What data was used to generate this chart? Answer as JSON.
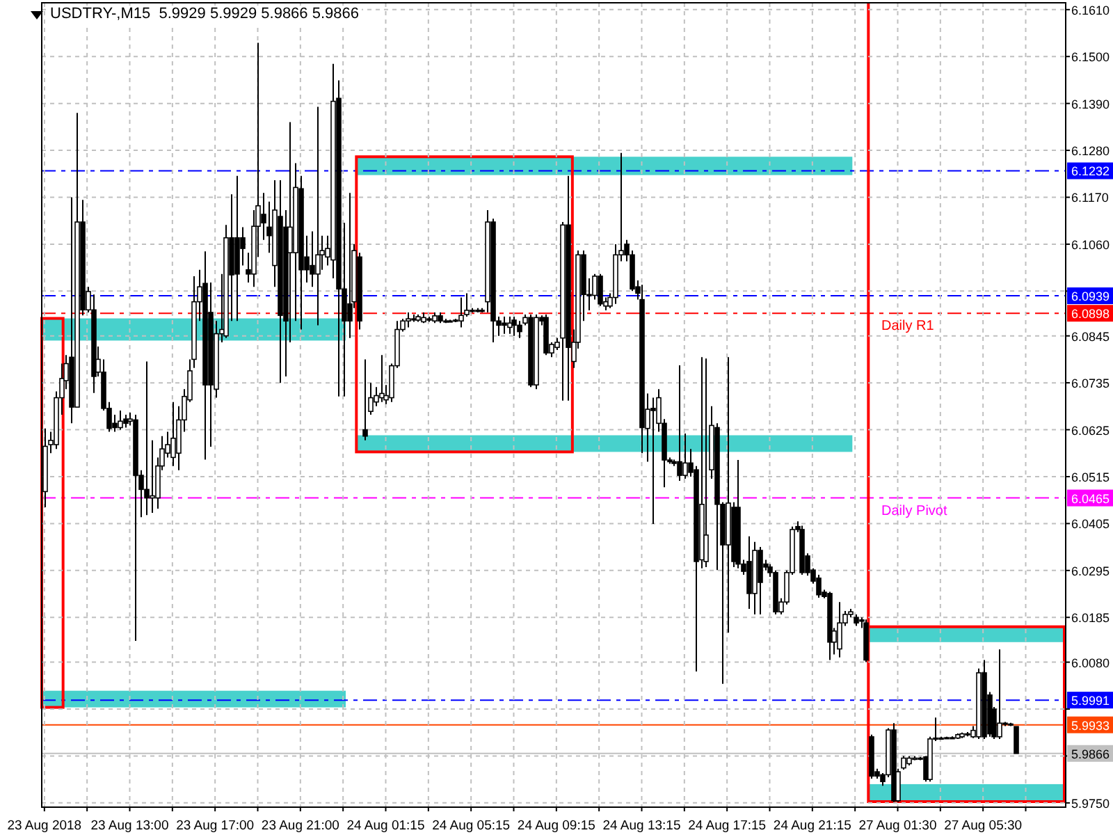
{
  "chart_data": {
    "type": "candlestick",
    "title": "USDTRY-,M15  5.9929 5.9929 5.9866 5.9866",
    "categories": [
      "23 Aug 2018",
      null,
      null,
      null,
      null,
      null,
      null,
      null,
      null,
      null,
      null,
      null,
      null,
      null,
      null,
      null,
      "23 Aug 13:00",
      null,
      null,
      null,
      null,
      null,
      null,
      null,
      null,
      null,
      null,
      null,
      null,
      null,
      null,
      null,
      "23 Aug 17:00",
      null,
      null,
      null,
      null,
      null,
      null,
      null,
      null,
      null,
      null,
      null,
      null,
      null,
      null,
      null,
      "23 Aug 21:00",
      null,
      null,
      null,
      null,
      null,
      null,
      null,
      null,
      null,
      null,
      null,
      null,
      null,
      null,
      null,
      "24 Aug 01:15",
      null,
      null,
      null,
      null,
      null,
      null,
      null,
      null,
      null,
      null,
      null,
      null,
      null,
      null,
      null,
      "24 Aug 05:15",
      null,
      null,
      null,
      null,
      null,
      null,
      null,
      null,
      null,
      null,
      null,
      null,
      null,
      null,
      null,
      "24 Aug 09:15",
      null,
      null,
      null,
      null,
      null,
      null,
      null,
      null,
      null,
      null,
      null,
      null,
      null,
      null,
      null,
      "24 Aug 13:15",
      null,
      null,
      null,
      null,
      null,
      null,
      null,
      null,
      null,
      null,
      null,
      null,
      null,
      null,
      null,
      "24 Aug 17:15",
      null,
      null,
      null,
      null,
      null,
      null,
      null,
      null,
      null,
      null,
      null,
      null,
      null,
      null,
      null,
      "24 Aug 21:15",
      null,
      null,
      null,
      null,
      null,
      null,
      null,
      null,
      null,
      null,
      null,
      null,
      null,
      null,
      null,
      "27 Aug 01:30",
      null,
      null,
      null,
      null,
      null,
      null,
      null,
      null,
      null,
      null,
      null,
      null,
      null,
      null,
      null,
      "27 Aug 05:30",
      null,
      null,
      null,
      null,
      null,
      null,
      null,
      null,
      null,
      null,
      null,
      null,
      null,
      null,
      null
    ],
    "ohlc": [
      [
        6.048,
        6.0628,
        6.0443,
        6.0586
      ],
      [
        6.059,
        6.062,
        6.057,
        6.06
      ],
      [
        6.059,
        6.0715,
        6.058,
        6.07
      ],
      [
        6.07,
        6.078,
        6.066,
        6.0745
      ],
      [
        6.074,
        6.08,
        6.072,
        6.078
      ],
      [
        6.0795,
        6.117,
        6.064,
        6.0678
      ],
      [
        6.0678,
        6.1368,
        6.0678,
        6.1112
      ],
      [
        6.1112,
        6.1164,
        6.0893,
        6.0906
      ],
      [
        6.0906,
        6.096,
        6.09,
        6.0949
      ],
      [
        6.0906,
        6.0942,
        6.0711,
        6.075
      ],
      [
        6.076,
        6.082,
        6.075,
        6.079
      ],
      [
        6.076,
        6.079,
        6.067,
        6.0675
      ],
      [
        6.0675,
        6.069,
        6.062,
        6.0628
      ],
      [
        6.064,
        6.066,
        6.062,
        6.063
      ],
      [
        6.063,
        6.067,
        6.0625,
        6.0645
      ],
      [
        6.065,
        6.066,
        6.063,
        6.064
      ],
      [
        6.0645,
        6.0665,
        6.0635,
        6.065
      ],
      [
        6.0648,
        6.066,
        6.013,
        6.0518
      ],
      [
        6.0518,
        6.053,
        6.042,
        6.0485
      ],
      [
        6.0485,
        6.0785,
        6.0425,
        6.0465
      ],
      [
        6.0465,
        6.06,
        6.043,
        6.047
      ],
      [
        6.0465,
        6.056,
        6.044,
        6.054
      ],
      [
        6.054,
        6.061,
        6.053,
        6.058
      ],
      [
        6.057,
        6.062,
        6.056,
        6.059
      ],
      [
        6.056,
        6.069,
        6.054,
        6.0605
      ],
      [
        6.057,
        6.068,
        6.053,
        6.0648
      ],
      [
        6.0648,
        6.072,
        6.062,
        6.0703
      ],
      [
        6.0695,
        6.079,
        6.069,
        6.0763
      ],
      [
        6.079,
        6.0985,
        6.077,
        6.0925
      ],
      [
        6.0925,
        6.1,
        6.088,
        6.096
      ],
      [
        6.0968,
        6.1043,
        6.0555,
        6.073
      ],
      [
        6.09,
        6.097,
        6.0585,
        6.073
      ],
      [
        6.072,
        6.088,
        6.07,
        6.085
      ],
      [
        6.085,
        6.099,
        6.083,
        6.086
      ],
      [
        6.0845,
        6.1105,
        6.084,
        6.1075
      ],
      [
        6.1075,
        6.1177,
        6.088,
        6.0988
      ],
      [
        6.1075,
        6.122,
        6.088,
        6.099
      ],
      [
        6.1075,
        6.11,
        6.101,
        6.105
      ],
      [
        6.1,
        6.104,
        6.097,
        6.099
      ],
      [
        6.099,
        6.114,
        6.096,
        6.1102
      ],
      [
        6.1102,
        6.1532,
        6.103,
        6.115
      ],
      [
        6.113,
        6.118,
        6.107,
        6.111
      ],
      [
        6.11,
        6.116,
        6.104,
        6.108
      ],
      [
        6.101,
        6.121,
        6.096,
        6.114
      ],
      [
        6.1125,
        6.121,
        6.0735,
        6.0893
      ],
      [
        6.11,
        6.114,
        6.075,
        6.088
      ],
      [
        6.104,
        6.1346,
        6.083,
        6.11
      ],
      [
        6.104,
        6.125,
        6.088,
        6.1193
      ],
      [
        6.119,
        6.122,
        6.086,
        6.1
      ],
      [
        6.103,
        6.108,
        6.097,
        6.1
      ],
      [
        6.101,
        6.109,
        6.096,
        6.099
      ],
      [
        6.099,
        6.1382,
        6.087,
        6.1035
      ],
      [
        6.1035,
        6.108,
        6.1,
        6.1045
      ],
      [
        6.103,
        6.108,
        6.101,
        6.105
      ],
      [
        6.1023,
        6.1483,
        6.098,
        6.1395
      ],
      [
        6.1402,
        6.1444,
        6.0703,
        6.0955
      ],
      [
        6.0955,
        6.111,
        6.0703,
        6.088
      ],
      [
        6.092,
        6.118,
        6.084,
        6.088
      ],
      [
        6.0925,
        6.106,
        6.091,
        6.1045
      ],
      [
        6.103,
        6.104,
        6.086,
        6.088
      ],
      [
        6.0625,
        6.079,
        6.06,
        6.061
      ],
      [
        6.0668,
        6.0735,
        6.066,
        6.07
      ],
      [
        6.069,
        6.0725,
        6.068,
        6.0705
      ],
      [
        6.07,
        6.08,
        6.069,
        6.071
      ],
      [
        6.0695,
        6.073,
        6.0685,
        6.0705
      ],
      [
        6.07,
        6.078,
        6.069,
        6.0775
      ],
      [
        6.0775,
        6.088,
        6.077,
        6.086
      ],
      [
        6.086,
        6.0885,
        6.0855,
        6.088
      ],
      [
        6.088,
        6.09,
        6.0865,
        6.0885
      ],
      [
        6.0885,
        6.0895,
        6.0878,
        6.0885
      ],
      [
        6.0882,
        6.0895,
        6.0878,
        6.089
      ],
      [
        6.0878,
        6.09,
        6.0875,
        6.0888
      ],
      [
        6.0885,
        6.089,
        6.0878,
        6.0882
      ],
      [
        6.088,
        6.09,
        6.0875,
        6.0892
      ],
      [
        6.0892,
        6.09,
        6.0875,
        6.088
      ],
      [
        6.088,
        6.0885,
        6.0875,
        6.088
      ],
      [
        6.088,
        6.0883,
        6.0877,
        6.088
      ],
      [
        6.088,
        6.0885,
        6.0877,
        6.0882
      ],
      [
        6.088,
        6.0935,
        6.0865,
        6.0893
      ],
      [
        6.0895,
        6.0945,
        6.089,
        6.0905
      ],
      [
        6.0905,
        6.091,
        6.09,
        6.0905
      ],
      [
        6.0905,
        6.091,
        6.09,
        6.0905
      ],
      [
        6.0905,
        6.091,
        6.09,
        6.0905
      ],
      [
        6.0925,
        6.114,
        6.09,
        6.1112
      ],
      [
        6.1112,
        6.112,
        6.083,
        6.088
      ],
      [
        6.088,
        6.089,
        6.0845,
        6.087
      ],
      [
        6.0875,
        6.089,
        6.085,
        6.087
      ],
      [
        6.0865,
        6.089,
        6.085,
        6.0875
      ],
      [
        6.0882,
        6.089,
        6.0845,
        6.087
      ],
      [
        6.087,
        6.088,
        6.084,
        6.0855
      ],
      [
        6.0875,
        6.0895,
        6.087,
        6.0888
      ],
      [
        6.0888,
        6.0895,
        6.0725,
        6.073
      ],
      [
        6.073,
        6.0895,
        6.072,
        6.0888
      ],
      [
        6.0888,
        6.0893,
        6.087,
        6.088
      ],
      [
        6.0888,
        6.0895,
        6.08,
        6.0805
      ],
      [
        6.0805,
        6.083,
        6.0795,
        6.0825
      ],
      [
        6.0818,
        6.084,
        6.0812,
        6.083
      ],
      [
        6.084,
        6.1112,
        6.0693,
        6.1105
      ],
      [
        6.1105,
        6.122,
        6.0693,
        6.0818
      ],
      [
        6.0785,
        6.086,
        6.077,
        6.083
      ],
      [
        6.083,
        6.1045,
        6.0815,
        6.1035
      ],
      [
        6.1035,
        6.1045,
        6.088,
        6.0942
      ],
      [
        6.0942,
        6.098,
        6.0905,
        6.094
      ],
      [
        6.094,
        6.099,
        6.093,
        6.0985
      ],
      [
        6.0985,
        6.099,
        6.0915,
        6.092
      ],
      [
        6.0915,
        6.0935,
        6.0905,
        6.0925
      ],
      [
        6.0915,
        6.0945,
        6.091,
        6.0935
      ],
      [
        6.0935,
        6.106,
        6.092,
        6.1035
      ],
      [
        6.1035,
        6.1274,
        6.102,
        6.1045
      ],
      [
        6.106,
        6.107,
        6.102,
        6.1035
      ],
      [
        6.1035,
        6.1045,
        6.095,
        6.0955
      ],
      [
        6.096,
        6.0975,
        6.093,
        6.0945
      ],
      [
        6.093,
        6.0965,
        6.057,
        6.063
      ],
      [
        6.0628,
        6.071,
        6.055,
        6.0673
      ],
      [
        6.0675,
        6.07,
        6.0404,
        6.067
      ],
      [
        6.064,
        6.072,
        6.062,
        6.07
      ],
      [
        6.064,
        6.065,
        6.049,
        6.0554
      ],
      [
        6.0554,
        6.056,
        6.0545,
        6.055
      ],
      [
        6.055,
        6.0555,
        6.054,
        6.0546
      ],
      [
        6.055,
        6.0776,
        6.0505,
        6.0518
      ],
      [
        6.0518,
        6.0616,
        6.051,
        6.0547
      ],
      [
        6.0547,
        6.058,
        6.0515,
        6.0525
      ],
      [
        6.0531,
        6.054,
        6.0058,
        6.0316
      ],
      [
        6.032,
        6.0795,
        6.03,
        6.045
      ],
      [
        6.0316,
        6.0792,
        6.0303,
        6.0378
      ],
      [
        6.0531,
        6.068,
        6.051,
        6.0635
      ],
      [
        6.063,
        6.064,
        6.0296,
        6.045
      ],
      [
        6.045,
        6.0455,
        6.0029,
        6.0355
      ],
      [
        6.0355,
        6.0795,
        6.0149,
        6.0453
      ],
      [
        6.0443,
        6.0455,
        6.0303,
        6.0316
      ],
      [
        6.0443,
        6.0554,
        6.03,
        6.031
      ],
      [
        6.031,
        6.032,
        6.0285,
        6.0293
      ],
      [
        6.0316,
        6.0375,
        6.0205,
        6.0241
      ],
      [
        6.0241,
        6.0362,
        6.0192,
        6.0342
      ],
      [
        6.0342,
        6.035,
        6.0192,
        6.0267
      ],
      [
        6.031,
        6.032,
        6.0295,
        6.0303
      ],
      [
        6.0303,
        6.031,
        6.028,
        6.029
      ],
      [
        6.029,
        6.0295,
        6.0192,
        6.0198
      ],
      [
        6.0198,
        6.023,
        6.0192,
        6.0221
      ],
      [
        6.0221,
        6.0295,
        6.0215,
        6.029
      ],
      [
        6.029,
        6.0398,
        6.0285,
        6.0391
      ],
      [
        6.0398,
        6.041,
        6.0385,
        6.0391
      ],
      [
        6.0391,
        6.04,
        6.0285,
        6.029
      ],
      [
        6.0329,
        6.0335,
        6.0283,
        6.029
      ],
      [
        6.0296,
        6.03,
        6.0264,
        6.027
      ],
      [
        6.0277,
        6.0285,
        6.0231,
        6.0238
      ],
      [
        6.0244,
        6.025,
        6.023,
        6.0234
      ],
      [
        6.0241,
        6.0245,
        6.0085,
        6.0127
      ],
      [
        6.0127,
        6.016,
        6.0098,
        6.0153
      ],
      [
        6.0111,
        6.0221,
        6.0091,
        6.0172
      ],
      [
        6.0172,
        6.02,
        6.0165,
        6.0192
      ],
      [
        6.0192,
        6.0205,
        6.0185,
        6.0198
      ],
      [
        6.0185,
        6.0192,
        6.0165,
        6.0172
      ],
      [
        6.0179,
        6.0185,
        6.016,
        6.0176
      ],
      [
        6.0172,
        6.018,
        6.008,
        6.0085
      ],
      [
        5.9905,
        5.991,
        5.9807,
        5.9813
      ],
      [
        5.9823,
        5.983,
        5.9807,
        5.9813
      ],
      [
        5.9816,
        5.982,
        5.979,
        5.98
      ],
      [
        5.9816,
        5.9925,
        5.981,
        5.9921
      ],
      [
        5.9921,
        5.9937,
        5.9752,
        5.9755
      ],
      [
        5.9755,
        5.983,
        5.9752,
        5.9823
      ],
      [
        5.9832,
        5.986,
        5.9828,
        5.9855
      ],
      [
        5.9842,
        5.986,
        5.9838,
        5.9855
      ],
      [
        5.9852,
        5.986,
        5.985,
        5.9855
      ],
      [
        5.9855,
        5.9858,
        5.985,
        5.9855
      ],
      [
        5.9858,
        5.986,
        5.98,
        5.9805
      ],
      [
        5.9805,
        5.9905,
        5.98,
        5.99
      ],
      [
        5.99,
        5.995,
        5.9895,
        5.9902
      ],
      [
        5.9902,
        5.9905,
        5.99,
        5.9902
      ],
      [
        5.9902,
        5.9905,
        5.99,
        5.9903
      ],
      [
        5.9903,
        5.9906,
        5.99,
        5.9903
      ],
      [
        5.9902,
        5.9913,
        5.99,
        5.991
      ],
      [
        5.9905,
        5.9915,
        5.9902,
        5.9912
      ],
      [
        5.991,
        5.9916,
        5.9906,
        5.9912
      ],
      [
        5.9905,
        5.993,
        5.9902,
        5.992
      ],
      [
        5.9905,
        6.0065,
        5.99,
        6.0055
      ],
      [
        6.0055,
        6.0085,
        5.99,
        5.9905
      ],
      [
        6.0003,
        6.001,
        5.9905,
        5.9912
      ],
      [
        5.997,
        5.9975,
        5.99,
        5.9905
      ],
      [
        5.9905,
        6.011,
        5.99,
        5.9937
      ],
      [
        5.9937,
        5.994,
        5.993,
        5.9935
      ],
      [
        5.9935,
        5.9938,
        5.993,
        5.9933
      ],
      [
        5.9929,
        5.9929,
        5.9866,
        5.9866
      ],
      null,
      null,
      null,
      null,
      null,
      null,
      null,
      null,
      null
    ],
    "color": "#000000",
    "ylim": [
      5.974,
      6.1626
    ],
    "yticks": [
      {
        "value": 6.161,
        "label": "6.1610"
      },
      {
        "value": 6.15,
        "label": "6.1500"
      },
      {
        "value": 6.139,
        "label": "6.1390"
      },
      {
        "value": 6.128,
        "label": "6.1280"
      },
      {
        "value": 6.117,
        "label": "6.1170"
      },
      {
        "value": 6.106,
        "label": "6.1060"
      },
      {
        "value": 6.095,
        "label": null
      },
      {
        "value": 6.0845,
        "label": "6.0845"
      },
      {
        "value": 6.0735,
        "label": "6.0735"
      },
      {
        "value": 6.0625,
        "label": "6.0625"
      },
      {
        "value": 6.0515,
        "label": "6.0515"
      },
      {
        "value": 6.0405,
        "label": "6.0405"
      },
      {
        "value": 6.0295,
        "label": "6.0295"
      },
      {
        "value": 6.0185,
        "label": "6.0185"
      },
      {
        "value": 6.008,
        "label": "6.0080"
      },
      {
        "value": 5.997,
        "label": null
      },
      {
        "value": 5.986,
        "label": null
      },
      {
        "value": 5.975,
        "label": "5.9750"
      }
    ],
    "grid": true,
    "ref_lines": [
      {
        "axis": "y",
        "value": 6.1232,
        "label": "6.1232",
        "color": "#0000ff",
        "line_style": "dashed"
      },
      {
        "axis": "y",
        "value": 6.0939,
        "label": "6.0939",
        "color": "#0000ff",
        "line_style": "dashed"
      },
      {
        "axis": "y",
        "value": 6.0898,
        "label": "6.0898",
        "color": "#ff0000",
        "line_style": "dashed"
      },
      {
        "axis": "y",
        "value": 6.0465,
        "label": "6.0465",
        "color": "#ff00ff",
        "line_style": "dashed"
      },
      {
        "axis": "y",
        "value": 5.9991,
        "label": "5.9991",
        "color": "#0000ff",
        "line_style": "dashed"
      },
      {
        "axis": "y",
        "value": 5.9933,
        "label": "5.9933",
        "color": "#ff4500",
        "line_style": "solid"
      },
      {
        "axis": "y",
        "value": 5.9866,
        "label": "5.9866",
        "color": "#c0c0c0",
        "line_style": "solid"
      }
    ],
    "annotations": [
      {
        "text": "Daily R1",
        "y": 6.0898
      },
      {
        "text": "Daily Pivot",
        "y": 6.0465
      }
    ],
    "bands": [
      {
        "axis": "y",
        "from": 6.0834,
        "to": 6.0886,
        "color": "#48d1cc"
      },
      {
        "axis": "y",
        "from": 5.9974,
        "to": 6.0013,
        "color": "#48d1cc"
      },
      {
        "axis": "y",
        "from": 6.1222,
        "to": 6.1265,
        "color": "#48d1cc"
      },
      {
        "axis": "y",
        "from": 6.0573,
        "to": 6.0612,
        "color": "#48d1cc"
      },
      {
        "axis": "y",
        "from": 6.0127,
        "to": 6.0163,
        "color": "#48d1cc"
      },
      {
        "axis": "y",
        "from": 5.9753,
        "to": 5.9794,
        "color": "#48d1cc"
      }
    ]
  }
}
